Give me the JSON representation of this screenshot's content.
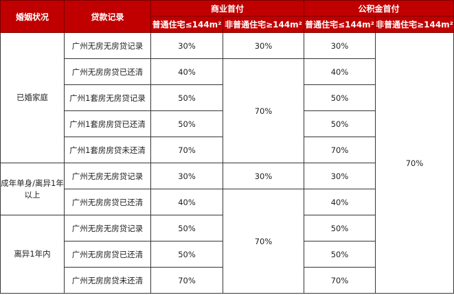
{
  "header": {
    "marital_status": "婚姻状况",
    "loan_record": "贷款记录",
    "commercial": "商业首付",
    "provident": "公积金首付",
    "sub": [
      "普通住宅≤144m²",
      "非普通住宅≥144m²",
      "普通住宅≤144m²",
      "非普通住宅≥144m²"
    ]
  },
  "groups": [
    {
      "status": "已婚家庭",
      "rows": [
        {
          "record": "广州无房无房贷记录",
          "c1": "30%",
          "p1": "30%"
        },
        {
          "record": "广州无房房贷已还清",
          "c1": "40%",
          "p1": "40%"
        },
        {
          "record": "广州1套房无房贷记录",
          "c1": "50%",
          "p1": "50%"
        },
        {
          "record": "广州1套房房贷已还清",
          "c1": "50%",
          "p1": "50%"
        },
        {
          "record": "广州1套房房贷未还清",
          "c1": "70%",
          "p1": "70%"
        }
      ]
    },
    {
      "status": "成年单身/离异1年以上",
      "rows": [
        {
          "record": "广州无房无房贷记录",
          "c1": "30%",
          "p1": "30%"
        },
        {
          "record": "广州无房房贷已还清",
          "c1": "40%",
          "p1": "40%"
        }
      ]
    },
    {
      "status": "离异1年内",
      "rows": [
        {
          "record": "广州无房无房贷记录",
          "c1": "50%",
          "p1": "50%"
        },
        {
          "record": "广州无房房贷已还清",
          "c1": "50%",
          "p1": "50%"
        },
        {
          "record": "广州无房房贷未还清",
          "c1": "70%",
          "p1": "70%"
        }
      ]
    }
  ],
  "merged": {
    "c2_married_first": "30%",
    "c2_married_rest": "70%",
    "c2_single_first": "30%",
    "c2_rest": "70%",
    "p2_all": "70%"
  },
  "colors": {
    "header_bg": "#c00000",
    "header_text": "#ffffff"
  }
}
